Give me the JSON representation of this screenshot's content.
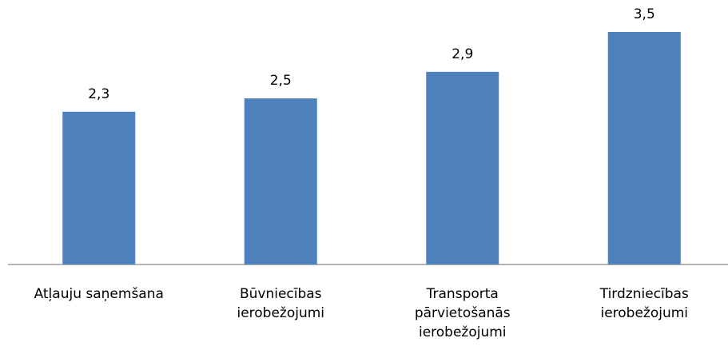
{
  "chart_data": {
    "type": "bar",
    "categories": [
      [
        "Atļauju saņemšana"
      ],
      [
        "Būvniecības",
        "ierobežojumi"
      ],
      [
        "Transporta",
        "pārvietošanās",
        "ierobežojumi"
      ],
      [
        "Tirdzniecības",
        "ierobežojumi"
      ]
    ],
    "values": [
      2.3,
      2.5,
      2.9,
      3.5
    ],
    "value_labels": [
      "2,3",
      "2,5",
      "2,9",
      "3,5"
    ],
    "color": "#4f81bd"
  }
}
